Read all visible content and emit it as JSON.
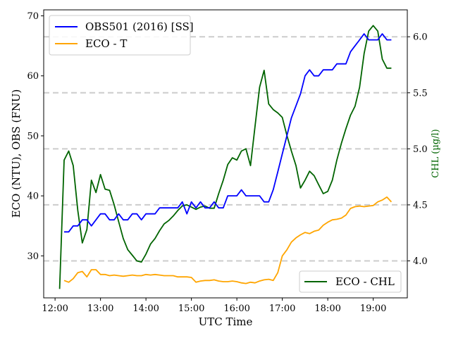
{
  "chart_data": {
    "type": "line",
    "xlabel": "UTC Time",
    "ylabel_left": "ECO (NTU), OBS (FNU)",
    "ylabel_right": "CHL (µg/l)",
    "x_ticks": [
      "12:00",
      "13:00",
      "14:00",
      "15:00",
      "16:00",
      "17:00",
      "18:00",
      "19:00"
    ],
    "y_left_ticks": [
      "30",
      "40",
      "50",
      "60",
      "70"
    ],
    "y_right_ticks": [
      "4.0",
      "4.5",
      "5.0",
      "5.5",
      "6.0"
    ],
    "xlim_hours": [
      11.75,
      19.75
    ],
    "ylim_left": [
      23,
      71
    ],
    "ylim_right": [
      3.67,
      6.24
    ],
    "grid": "dashed horizontal lines at right-axis ticks",
    "legend_left_placement": "top-left",
    "legend_right_placement": "bottom-right",
    "colors": {
      "obs": "#0000ff",
      "eco_t": "#ffa500",
      "chl": "#006400",
      "grid": "#cccccc",
      "right_axis": "#006400"
    },
    "series": [
      {
        "name": "OBS501 (2016) [SS]",
        "axis": "left",
        "x": [
          12.2,
          12.3,
          12.4,
          12.5,
          12.6,
          12.7,
          12.8,
          12.9,
          13.0,
          13.1,
          13.2,
          13.3,
          13.4,
          13.5,
          13.6,
          13.7,
          13.8,
          13.9,
          14.0,
          14.1,
          14.2,
          14.3,
          14.4,
          14.5,
          14.6,
          14.7,
          14.8,
          14.9,
          15.0,
          15.1,
          15.2,
          15.3,
          15.4,
          15.5,
          15.6,
          15.7,
          15.8,
          15.9,
          16.0,
          16.1,
          16.2,
          16.3,
          16.4,
          16.5,
          16.6,
          16.7,
          16.8,
          16.9,
          17.0,
          17.1,
          17.2,
          17.3,
          17.4,
          17.5,
          17.6,
          17.7,
          17.8,
          17.9,
          18.0,
          18.1,
          18.2,
          18.3,
          18.4,
          18.5,
          18.6,
          18.7,
          18.8,
          18.9,
          19.0,
          19.1,
          19.2,
          19.3,
          19.4
        ],
        "y": [
          34,
          34,
          35,
          35,
          36,
          36,
          35,
          36,
          37,
          37,
          36,
          36,
          37,
          36,
          36,
          37,
          37,
          36,
          37,
          37,
          37,
          38,
          38,
          38,
          38,
          38,
          39,
          37,
          39,
          38,
          39,
          38,
          38,
          39,
          38,
          38,
          40,
          40,
          40,
          41,
          40,
          40,
          40,
          40,
          39,
          39,
          41,
          44,
          47,
          50,
          53,
          55,
          57,
          60,
          61,
          60,
          60,
          61,
          61,
          61,
          62,
          62,
          62,
          64,
          65,
          66,
          67,
          66,
          66,
          66,
          67,
          66,
          66
        ]
      },
      {
        "name": "ECO - T",
        "axis": "left",
        "x": [
          12.2,
          12.3,
          12.4,
          12.5,
          12.6,
          12.7,
          12.8,
          12.9,
          13.0,
          13.1,
          13.2,
          13.3,
          13.4,
          13.5,
          13.6,
          13.7,
          13.8,
          13.9,
          14.0,
          14.1,
          14.2,
          14.3,
          14.4,
          14.5,
          14.6,
          14.7,
          14.8,
          14.9,
          15.0,
          15.1,
          15.2,
          15.3,
          15.4,
          15.5,
          15.6,
          15.7,
          15.8,
          15.9,
          16.0,
          16.1,
          16.2,
          16.3,
          16.4,
          16.5,
          16.6,
          16.7,
          16.8,
          16.9,
          17.0,
          17.1,
          17.2,
          17.3,
          17.4,
          17.5,
          17.6,
          17.7,
          17.8,
          17.9,
          18.0,
          18.1,
          18.2,
          18.3,
          18.4,
          18.5,
          18.6,
          18.7,
          18.8,
          18.9,
          19.0,
          19.1,
          19.2,
          19.3,
          19.4
        ],
        "y": [
          25.9,
          25.6,
          26.2,
          27.2,
          27.4,
          26.5,
          27.7,
          27.7,
          26.9,
          26.9,
          26.7,
          26.8,
          26.7,
          26.6,
          26.7,
          26.8,
          26.7,
          26.7,
          26.9,
          26.8,
          26.9,
          26.8,
          26.7,
          26.7,
          26.7,
          26.5,
          26.5,
          26.5,
          26.4,
          25.6,
          25.8,
          25.9,
          25.9,
          26.0,
          25.8,
          25.7,
          25.7,
          25.8,
          25.7,
          25.5,
          25.4,
          25.6,
          25.5,
          25.8,
          26.0,
          26.1,
          25.9,
          27.2,
          30.0,
          31.0,
          32.3,
          33.0,
          33.5,
          33.9,
          33.7,
          34.1,
          34.3,
          35.1,
          35.6,
          36.0,
          36.1,
          36.3,
          36.8,
          37.9,
          38.2,
          38.3,
          38.2,
          38.3,
          38.4,
          39.0,
          39.3,
          39.8,
          39.0
        ]
      },
      {
        "name": "ECO - CHL",
        "axis": "right",
        "x": [
          12.1,
          12.2,
          12.3,
          12.4,
          12.5,
          12.6,
          12.7,
          12.8,
          12.9,
          13.0,
          13.1,
          13.2,
          13.3,
          13.4,
          13.5,
          13.6,
          13.7,
          13.8,
          13.9,
          14.0,
          14.1,
          14.2,
          14.3,
          14.4,
          14.5,
          14.6,
          14.7,
          14.8,
          14.9,
          15.0,
          15.1,
          15.2,
          15.3,
          15.4,
          15.5,
          15.6,
          15.7,
          15.8,
          15.9,
          16.0,
          16.1,
          16.2,
          16.3,
          16.4,
          16.5,
          16.6,
          16.7,
          16.8,
          16.9,
          17.0,
          17.1,
          17.2,
          17.3,
          17.4,
          17.5,
          17.6,
          17.7,
          17.8,
          17.9,
          18.0,
          18.1,
          18.2,
          18.3,
          18.4,
          18.5,
          18.6,
          18.7,
          18.8,
          18.9,
          19.0,
          19.1,
          19.2,
          19.3,
          19.4
        ],
        "y": [
          3.75,
          4.9,
          4.98,
          4.85,
          4.45,
          4.16,
          4.28,
          4.72,
          4.61,
          4.77,
          4.64,
          4.63,
          4.5,
          4.35,
          4.2,
          4.1,
          4.05,
          4.0,
          3.99,
          4.06,
          4.15,
          4.2,
          4.27,
          4.33,
          4.36,
          4.4,
          4.45,
          4.49,
          4.5,
          4.48,
          4.46,
          4.48,
          4.49,
          4.47,
          4.47,
          4.6,
          4.72,
          4.86,
          4.92,
          4.9,
          4.98,
          5.0,
          4.85,
          5.2,
          5.55,
          5.7,
          5.4,
          5.35,
          5.32,
          5.28,
          5.12,
          4.98,
          4.85,
          4.65,
          4.72,
          4.8,
          4.76,
          4.68,
          4.6,
          4.62,
          4.72,
          4.9,
          5.05,
          5.18,
          5.3,
          5.38,
          5.55,
          5.85,
          6.05,
          6.1,
          6.05,
          5.8,
          5.72,
          5.72
        ]
      }
    ]
  }
}
